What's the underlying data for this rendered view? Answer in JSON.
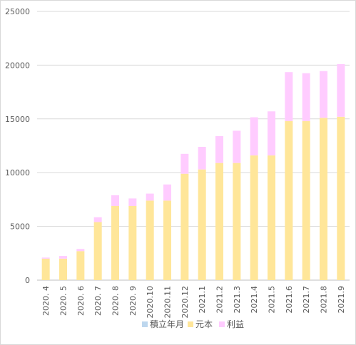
{
  "chart_data": {
    "type": "bar",
    "stacked": true,
    "categories": [
      "2020. 4",
      "2020. 5",
      "2020. 6",
      "2020. 7",
      "2020. 8",
      "2020. 9",
      "2020.10",
      "2020.11",
      "2020.12",
      "2021.1",
      "2021.2",
      "2021.3",
      "2021.4",
      "2021.5",
      "2021.6",
      "2021.7",
      "2021.8",
      "2021.9"
    ],
    "series": [
      {
        "name": "積立年月",
        "color": "#bdd7ee",
        "values": [
          0,
          0,
          0,
          0,
          0,
          0,
          0,
          0,
          0,
          0,
          0,
          0,
          0,
          0,
          0,
          0,
          0,
          0
        ]
      },
      {
        "name": "元本",
        "color": "#ffe699",
        "values": [
          2000,
          2000,
          2700,
          5400,
          6900,
          6900,
          7400,
          7400,
          9900,
          10300,
          10900,
          10900,
          11600,
          11600,
          14800,
          14800,
          15100,
          15200
        ]
      },
      {
        "name": "利益",
        "color": "#ffccff",
        "values": [
          100,
          250,
          200,
          450,
          1000,
          700,
          650,
          1500,
          1850,
          2100,
          2500,
          3000,
          3550,
          4100,
          4550,
          4450,
          4350,
          4900
        ]
      }
    ],
    "yticks": [
      "25000",
      "20000",
      "15000",
      "10000",
      "5000",
      "0"
    ],
    "ylim": [
      0,
      25000
    ],
    "grid": true,
    "legend_position": "bottom"
  }
}
